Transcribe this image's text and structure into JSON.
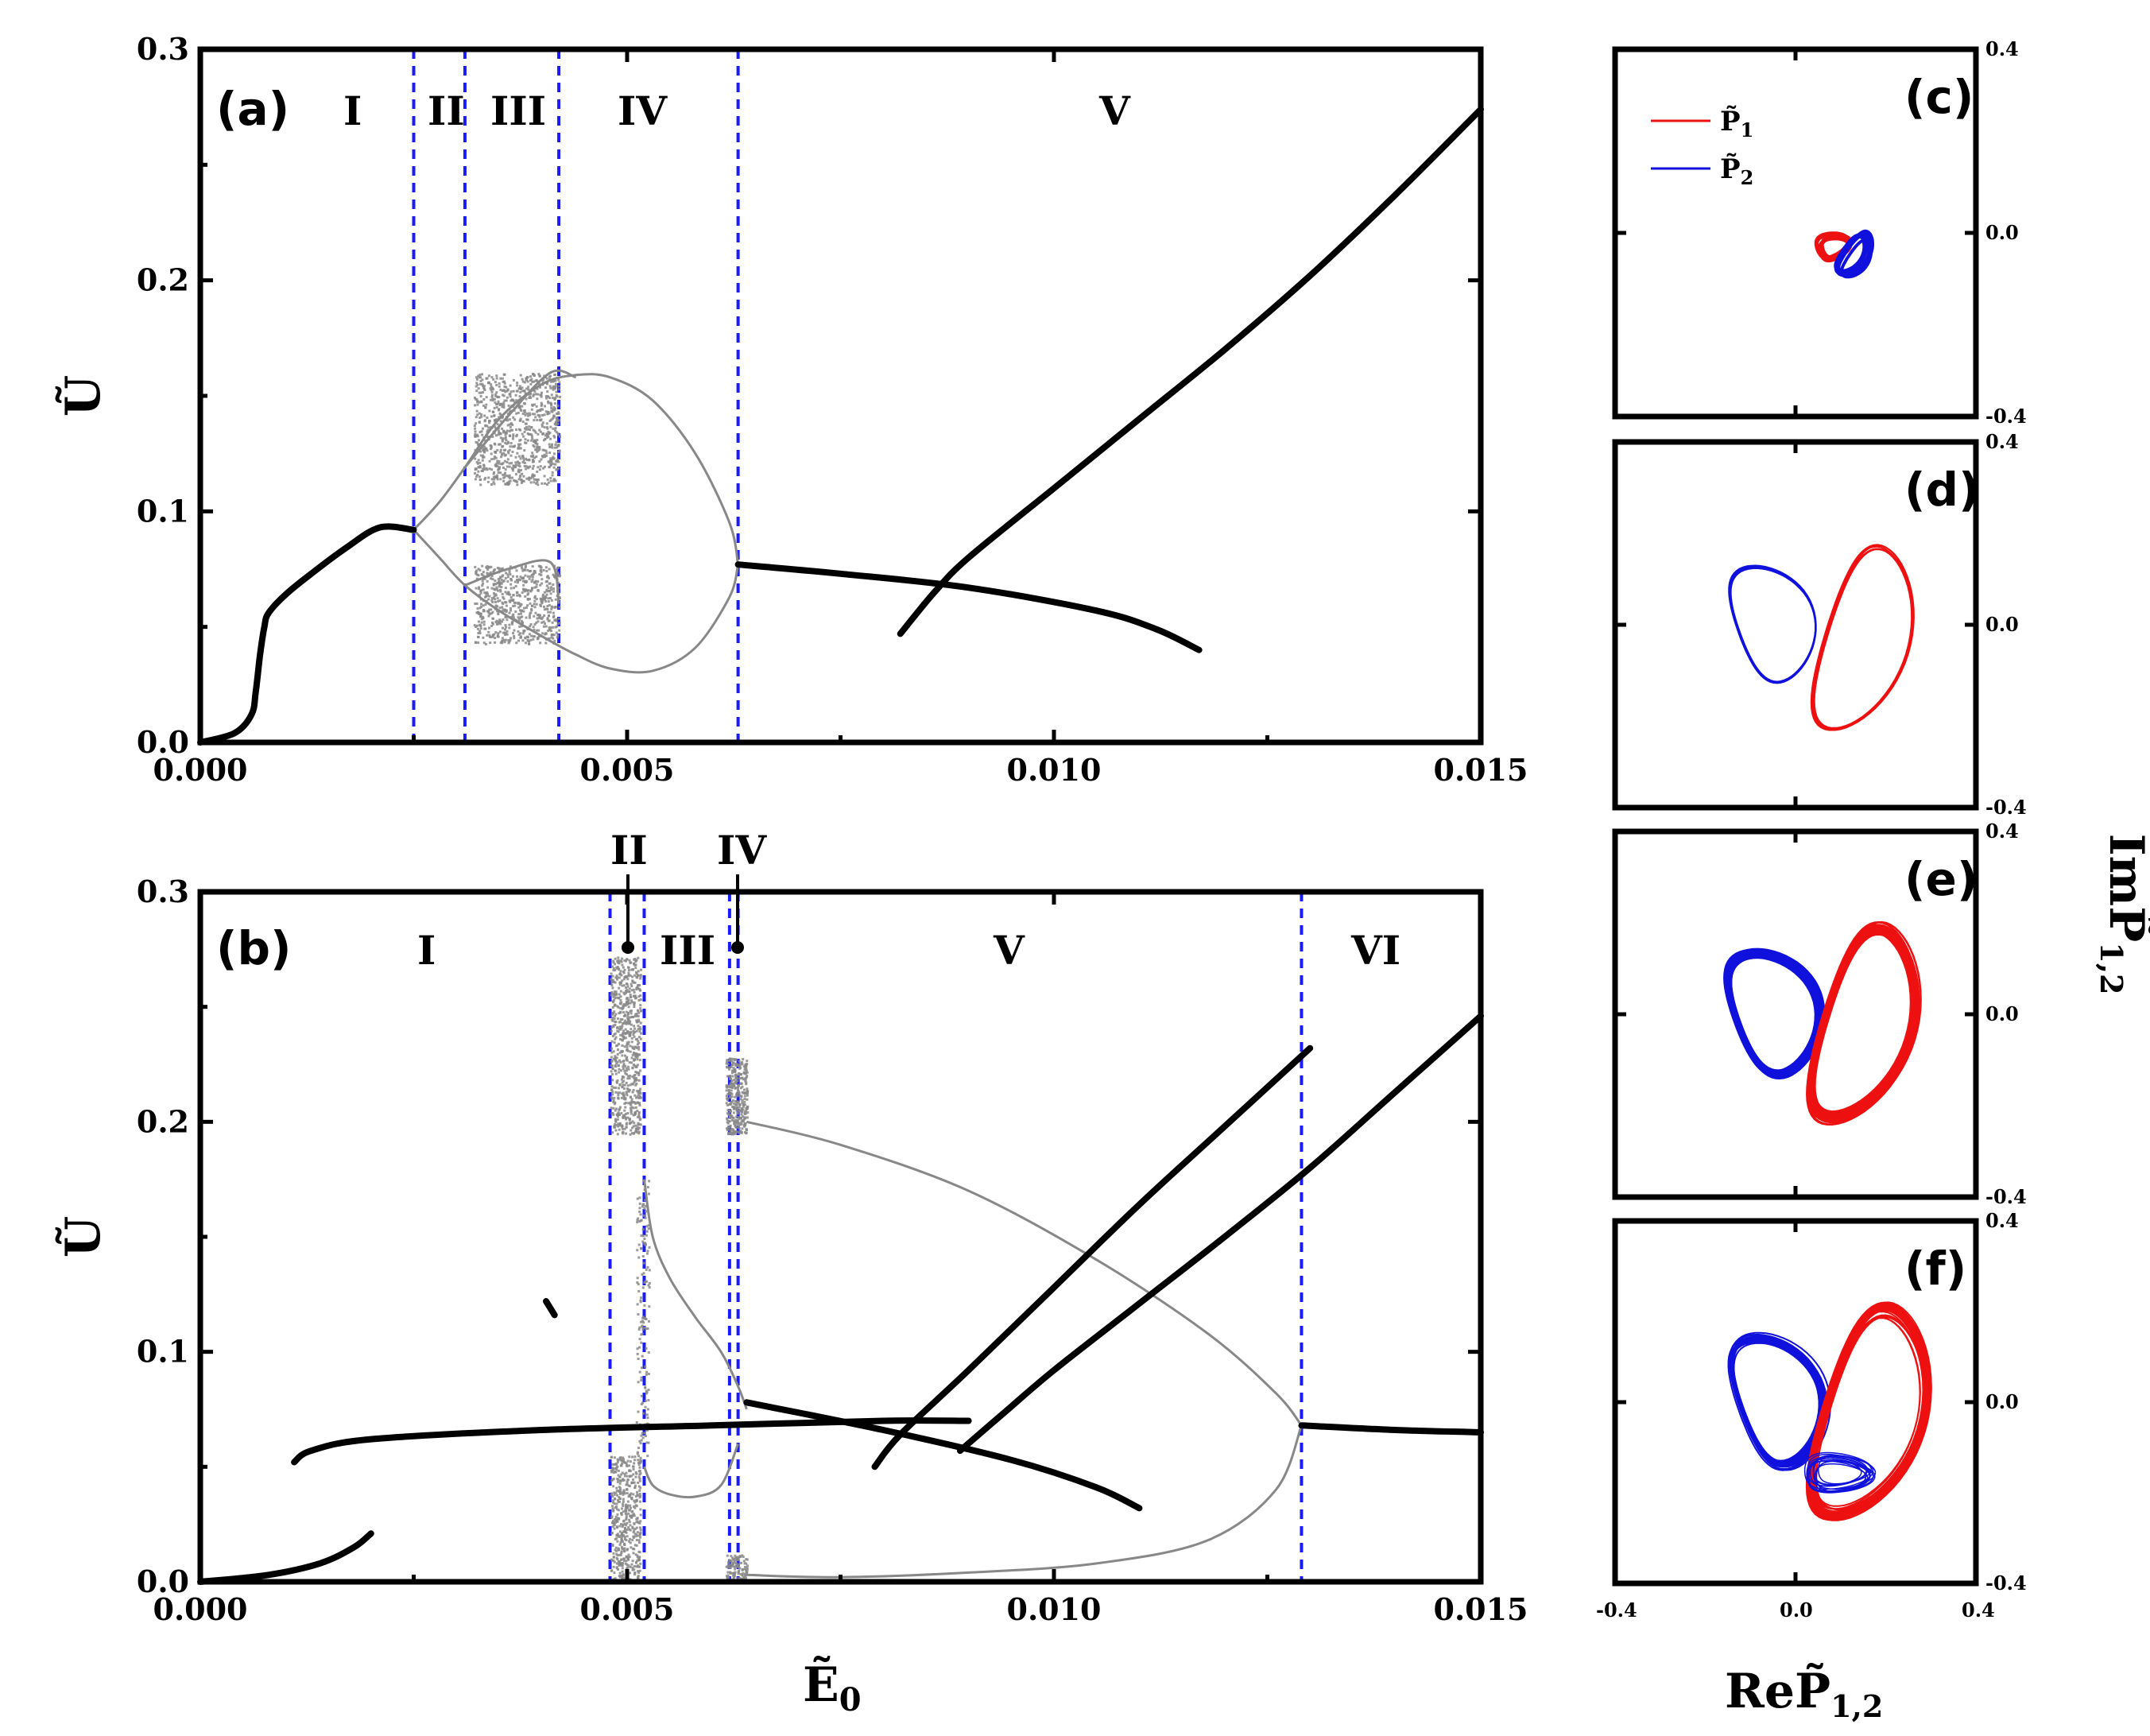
{
  "chart_data": [
    {
      "panel": "(a)",
      "type": "line",
      "title": "",
      "xlabel": "",
      "ylabel": "Ũ",
      "xlim": [
        0.0,
        0.015
      ],
      "ylim": [
        0.0,
        0.3
      ],
      "xticks": [
        "0.000",
        "0.005",
        "0.010",
        "0.015"
      ],
      "yticks": [
        "0.0",
        "0.1",
        "0.2",
        "0.3"
      ],
      "boundaries": [
        0.0025,
        0.0031,
        0.0042,
        0.0063
      ],
      "regions": [
        "I",
        "II",
        "III",
        "IV",
        "V"
      ],
      "series": [
        {
          "name": "branch-1",
          "x": [
            0.0,
            0.0004,
            0.0006,
            0.00065,
            0.0007,
            0.00075,
            0.0008,
            0.001,
            0.0013,
            0.0017,
            0.0021,
            0.0025
          ],
          "y": [
            0.0,
            0.004,
            0.012,
            0.022,
            0.038,
            0.05,
            0.056,
            0.064,
            0.073,
            0.084,
            0.093,
            0.092
          ]
        },
        {
          "name": "branch-2",
          "x": [
            0.0063,
            0.0075,
            0.009,
            0.0105,
            0.0112,
            0.0117
          ],
          "y": [
            0.077,
            0.073,
            0.067,
            0.057,
            0.049,
            0.04
          ]
        },
        {
          "name": "branch-3",
          "x": [
            0.0082,
            0.0086,
            0.009,
            0.01,
            0.011,
            0.012,
            0.013,
            0.014,
            0.015
          ],
          "y": [
            0.047,
            0.065,
            0.08,
            0.11,
            0.14,
            0.17,
            0.202,
            0.237,
            0.274
          ]
        }
      ]
    },
    {
      "panel": "(b)",
      "type": "line",
      "title": "",
      "xlabel": "Ẽ₀",
      "ylabel": "Ũ",
      "xlim": [
        0.0,
        0.015
      ],
      "ylim": [
        0.0,
        0.3
      ],
      "xticks": [
        "0.000",
        "0.005",
        "0.010",
        "0.015"
      ],
      "yticks": [
        "0.0",
        "0.1",
        "0.2",
        "0.3"
      ],
      "boundaries": [
        0.0048,
        0.0052,
        0.0062,
        0.0063,
        0.0129
      ],
      "regions": [
        "I",
        "II",
        "III",
        "IV",
        "V",
        "VI"
      ],
      "series": [
        {
          "name": "branch-1",
          "x": [
            0.0,
            0.0008,
            0.0014,
            0.0018,
            0.002
          ],
          "y": [
            0.0,
            0.003,
            0.008,
            0.015,
            0.021
          ]
        },
        {
          "name": "branch-2",
          "x": [
            0.0011,
            0.0013,
            0.002,
            0.004,
            0.006,
            0.008,
            0.009
          ],
          "y": [
            0.052,
            0.057,
            0.062,
            0.066,
            0.068,
            0.07,
            0.07
          ]
        },
        {
          "name": "branch-3",
          "x": [
            0.0064,
            0.008,
            0.0095,
            0.0105,
            0.011
          ],
          "y": [
            0.078,
            0.066,
            0.053,
            0.041,
            0.032
          ]
        },
        {
          "name": "branch-4",
          "x": [
            0.0079,
            0.0082,
            0.009,
            0.01,
            0.011,
            0.012,
            0.013
          ],
          "y": [
            0.05,
            0.064,
            0.092,
            0.128,
            0.164,
            0.198,
            0.232
          ]
        },
        {
          "name": "branch-5",
          "x": [
            0.0089,
            0.0094,
            0.01,
            0.011,
            0.012,
            0.013,
            0.014,
            0.015
          ],
          "y": [
            0.057,
            0.073,
            0.092,
            0.121,
            0.15,
            0.18,
            0.213,
            0.246
          ]
        },
        {
          "name": "branch-6",
          "x": [
            0.0129,
            0.014,
            0.015
          ],
          "y": [
            0.068,
            0.066,
            0.065
          ]
        },
        {
          "name": "isolated",
          "x": [
            0.00405,
            0.00415
          ],
          "y": [
            0.122,
            0.116
          ]
        }
      ]
    },
    {
      "panel": "(c)-(f)",
      "type": "scatter",
      "xlabel": "ReP̃₁,₂",
      "ylabel": "ImP̃₁,₂",
      "xlim": [
        -0.4,
        0.4
      ],
      "ylim": [
        -0.4,
        0.4
      ],
      "legend": [
        "P̃₁",
        "P̃₂"
      ]
    }
  ],
  "colors": {
    "boundary": "#1a1aff",
    "p1": "#ee1111",
    "p2": "#1111dd",
    "chaos": "#888888"
  },
  "panels": {
    "a": "(a)",
    "b": "(b)",
    "c": "(c)",
    "d": "(d)",
    "e": "(e)",
    "f": "(f)"
  },
  "regions_a": [
    "I",
    "II",
    "III",
    "IV",
    "V"
  ],
  "regions_b": [
    "I",
    "III",
    "V",
    "VI"
  ],
  "callouts_b": [
    "II",
    "IV"
  ],
  "xticks": [
    "0.000",
    "0.005",
    "0.010",
    "0.015"
  ],
  "yticks": [
    "0.0",
    "0.1",
    "0.2",
    "0.3"
  ],
  "small_ticks": {
    "top": "0.4",
    "mid": "0.0",
    "bottom": "-0.4",
    "left": "-0.4",
    "center": "0.0",
    "right": "0.4"
  },
  "labels": {
    "y_main": "Ũ",
    "x_main": "Ẽ",
    "x_sub": "0",
    "re": "Re",
    "im": "Im",
    "p": "P̃",
    "p_sub": "1,2"
  },
  "legend": [
    {
      "symbol": "P̃",
      "sub": "1",
      "color": "#ee1111"
    },
    {
      "symbol": "P̃",
      "sub": "2",
      "color": "#1111dd"
    }
  ]
}
